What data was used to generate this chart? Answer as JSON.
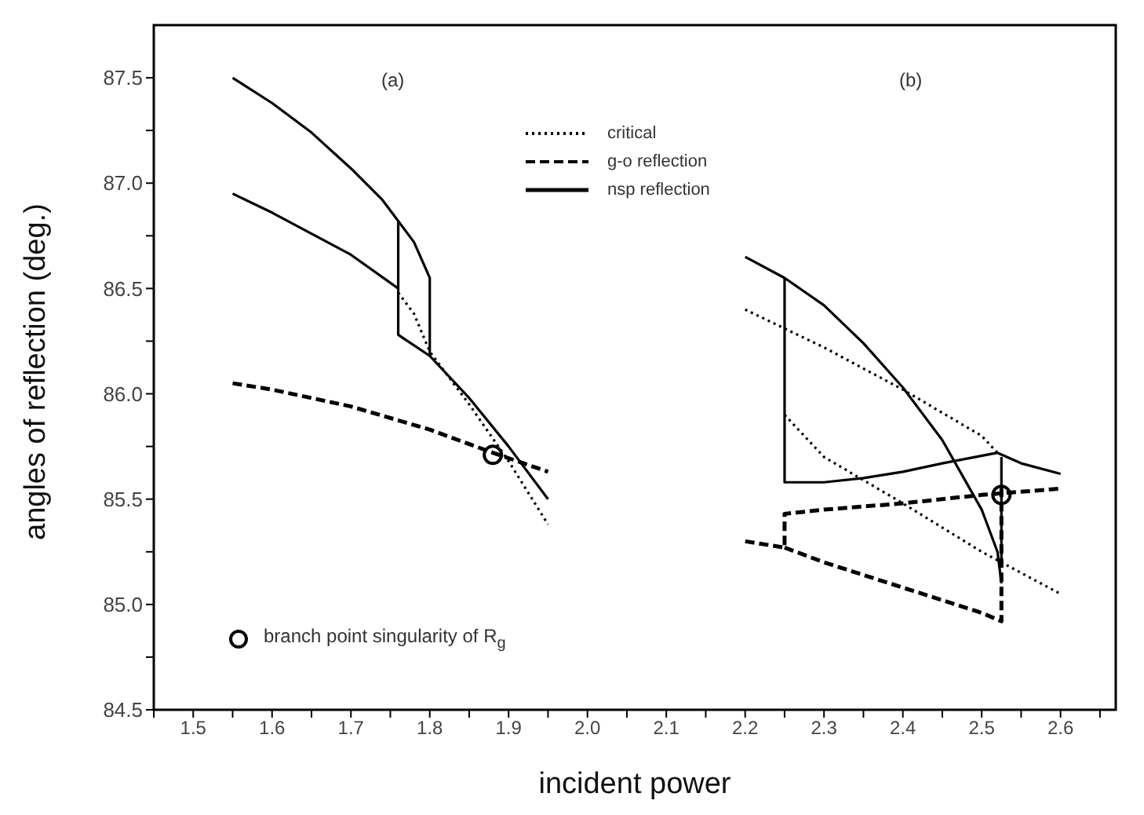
{
  "chart_data": {
    "type": "line",
    "xlabel": "incident power",
    "ylabel": "angles of reflection (deg.)",
    "xlim": [
      1.45,
      2.67
    ],
    "ylim": [
      84.5,
      87.75
    ],
    "xticks": [
      {
        "value": 1.45,
        "label": null
      },
      1.5,
      {
        "value": 1.55,
        "label": null
      },
      1.6,
      {
        "value": 1.65,
        "label": null
      },
      1.7,
      {
        "value": 1.75,
        "label": null
      },
      1.8,
      {
        "value": 1.85,
        "label": null
      },
      1.9,
      {
        "value": 1.95,
        "label": null
      },
      {
        "value": 2,
        "label": "2.0"
      },
      {
        "value": 2.05,
        "label": null
      },
      2.1,
      {
        "value": 2.15,
        "label": null
      },
      2.2,
      {
        "value": 2.25,
        "label": null
      },
      2.3,
      {
        "value": 2.35,
        "label": null
      },
      2.4,
      {
        "value": 2.45,
        "label": null
      },
      2.5,
      {
        "value": 2.55,
        "label": null
      },
      2.6,
      {
        "value": 2.65,
        "label": null
      }
    ],
    "yticks": [
      84.5,
      {
        "value": 84.75,
        "label": null
      },
      {
        "value": 85,
        "label": "85.0"
      },
      {
        "value": 85.25,
        "label": null
      },
      85.5,
      {
        "value": 85.75,
        "label": null
      },
      {
        "value": 86,
        "label": "86.0"
      },
      {
        "value": 86.25,
        "label": null
      },
      86.5,
      {
        "value": 86.75,
        "label": null
      },
      {
        "value": 87,
        "label": "87.0"
      },
      {
        "value": 87.25,
        "label": null
      },
      87.5
    ],
    "grid": false,
    "legend": "left",
    "annotations": [
      "(a)",
      "(b)"
    ],
    "series": [
      {
        "name": "critical",
        "color": "#000000",
        "line_style": "dotted",
        "x": [
          1.76,
          1.78,
          1.8,
          1.85,
          1.9,
          1.95
        ],
        "values": [
          86.48,
          86.38,
          86.2,
          85.95,
          85.68,
          85.38
        ]
      },
      {
        "color": "#000000",
        "line_style": "dotted",
        "x": [
          2.2,
          2.3,
          2.4,
          2.5,
          2.52
        ],
        "values": [
          86.4,
          86.22,
          86.02,
          85.8,
          85.72
        ]
      },
      {
        "color": "#000000",
        "line_style": "dotted",
        "x": [
          2.25,
          2.3,
          2.4,
          2.5,
          2.6
        ],
        "values": [
          85.9,
          85.7,
          85.48,
          85.25,
          85.05
        ]
      },
      {
        "name": "g-o reflection",
        "color": "#000000",
        "line_style": "dashed",
        "x": [
          1.55,
          1.6,
          1.7,
          1.8,
          1.88,
          1.95
        ],
        "values": [
          86.05,
          86.02,
          85.94,
          85.83,
          85.72,
          85.63
        ]
      },
      {
        "color": "#000000",
        "line_style": "dashed",
        "x": [
          2.2,
          2.25,
          2.25,
          2.3,
          2.4,
          2.5,
          2.6
        ],
        "values": [
          85.3,
          85.27,
          85.43,
          85.45,
          85.48,
          85.52,
          85.55
        ]
      },
      {
        "color": "#000000",
        "line_style": "dashed",
        "x": [
          2.25,
          2.3,
          2.4,
          2.5,
          2.525,
          2.525
        ],
        "values": [
          85.27,
          85.2,
          85.08,
          84.96,
          84.92,
          85.55
        ]
      },
      {
        "name": "nsp reflection",
        "color": "#000000",
        "line_style": "solid",
        "x": [
          1.55,
          1.6,
          1.65,
          1.7,
          1.74,
          1.76,
          1.76,
          1.8,
          1.85,
          1.9,
          1.95
        ],
        "values": [
          87.5,
          87.38,
          87.24,
          87.07,
          86.92,
          86.82,
          86.28,
          86.18,
          85.98,
          85.75,
          85.5
        ]
      },
      {
        "color": "#000000",
        "line_style": "solid",
        "x": [
          1.76,
          1.78,
          1.8,
          1.8
        ],
        "values": [
          86.82,
          86.72,
          86.55,
          86.18
        ]
      },
      {
        "color": "#000000",
        "line_style": "solid",
        "x": [
          1.55,
          1.6,
          1.65,
          1.7,
          1.76
        ],
        "values": [
          86.95,
          86.86,
          86.76,
          86.66,
          86.5
        ]
      },
      {
        "color": "#000000",
        "line_style": "solid",
        "x": [
          2.2,
          2.25,
          2.3,
          2.35,
          2.4,
          2.45,
          2.5,
          2.52,
          2.525
        ],
        "values": [
          86.65,
          86.55,
          86.42,
          86.24,
          86.03,
          85.78,
          85.45,
          85.25,
          85.1
        ]
      },
      {
        "color": "#000000",
        "line_style": "solid",
        "x": [
          2.25,
          2.25,
          2.3,
          2.35,
          2.4,
          2.45,
          2.52,
          2.55,
          2.6
        ],
        "values": [
          86.55,
          85.58,
          85.58,
          85.6,
          85.63,
          85.67,
          85.72,
          85.67,
          85.62
        ]
      },
      {
        "color": "#000000",
        "line_style": "solid",
        "x": [
          2.525,
          2.525
        ],
        "values": [
          85.7,
          85.2
        ]
      },
      {
        "name": "branch point singularity of R$_{g}$",
        "type": "scatter",
        "marker": "circle",
        "color": "#000000",
        "x": [
          1.88,
          2.525
        ],
        "values": [
          85.71,
          85.52
        ]
      }
    ]
  }
}
